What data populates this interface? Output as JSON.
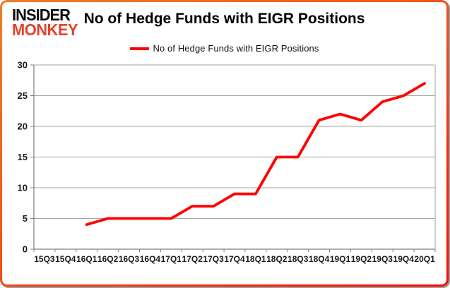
{
  "logo": {
    "line1": "INSIDER",
    "line2": "MONKEY"
  },
  "title": "No of Hedge Funds with EIGR Positions",
  "legend": {
    "label": "No of Hedge Funds with EIGR Positions"
  },
  "colors": {
    "series_line": "#fe0000",
    "logo_red": "#e2432e",
    "frame_orange": "#f07c2b",
    "frame_red": "#fc0a02",
    "grid": "#a6a6a6",
    "axis": "#7f7f7f",
    "tick_text": "#1a1a1a"
  },
  "chart_data": {
    "type": "line",
    "title": "No of Hedge Funds with EIGR Positions",
    "categories": [
      "15Q3",
      "15Q4",
      "16Q1",
      "16Q2",
      "16Q3",
      "16Q4",
      "17Q1",
      "17Q2",
      "17Q3",
      "17Q4",
      "18Q1",
      "18Q2",
      "18Q3",
      "18Q4",
      "19Q1",
      "19Q2",
      "19Q3",
      "19Q4",
      "20Q1"
    ],
    "series": [
      {
        "name": "No of Hedge Funds with EIGR Positions",
        "color": "#fe0000",
        "values": [
          null,
          null,
          4,
          5,
          5,
          5,
          5,
          7,
          7,
          9,
          9,
          15,
          15,
          21,
          22,
          21,
          24,
          25,
          27
        ]
      }
    ],
    "xlabel": "",
    "ylabel": "",
    "ylim": [
      0,
      30
    ],
    "ytick_step": 5,
    "grid": true,
    "legend_position": "top-center"
  }
}
